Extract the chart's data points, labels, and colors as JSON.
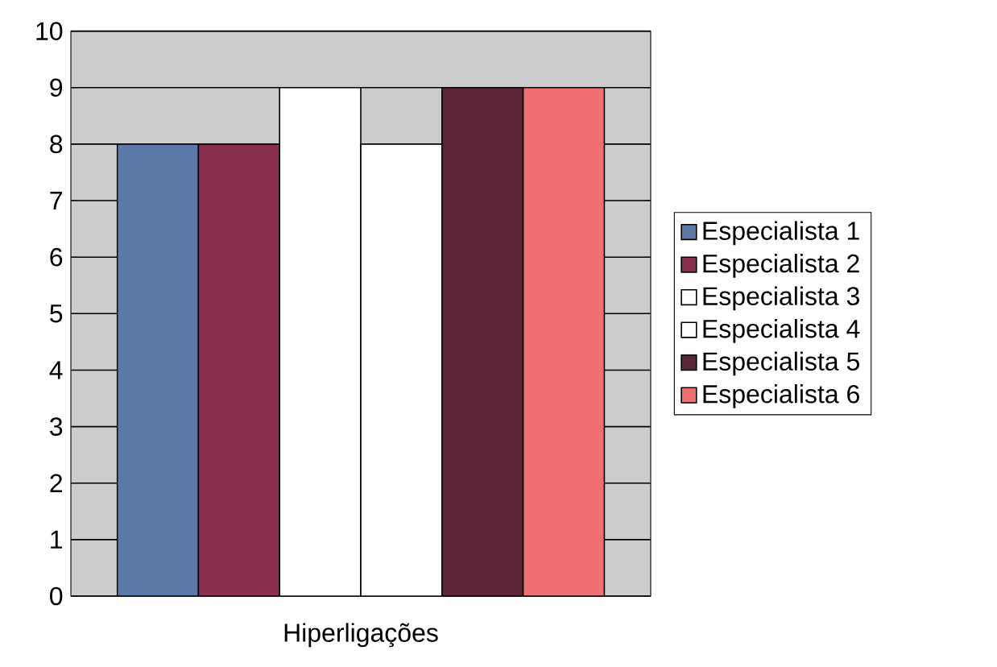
{
  "chart_data": {
    "type": "bar",
    "categories": [
      "Hiperligações"
    ],
    "series": [
      {
        "name": "Especialista 1",
        "color": "#5b7aa6",
        "values": [
          8
        ]
      },
      {
        "name": "Especialista 2",
        "color": "#8a3050",
        "values": [
          8
        ]
      },
      {
        "name": "Especialista 3",
        "color": "#ffffff",
        "values": [
          9
        ]
      },
      {
        "name": "Especialista 4",
        "color": "#ffffff",
        "values": [
          8
        ]
      },
      {
        "name": "Especialista 5",
        "color": "#5c2838",
        "values": [
          9
        ]
      },
      {
        "name": "Especialista 6",
        "color": "#ee7070",
        "values": [
          9
        ]
      }
    ],
    "ylim": [
      0,
      10
    ],
    "yticks": [
      0,
      1,
      2,
      3,
      4,
      5,
      6,
      7,
      8,
      9,
      10
    ],
    "grid": "y",
    "legend": "right"
  }
}
